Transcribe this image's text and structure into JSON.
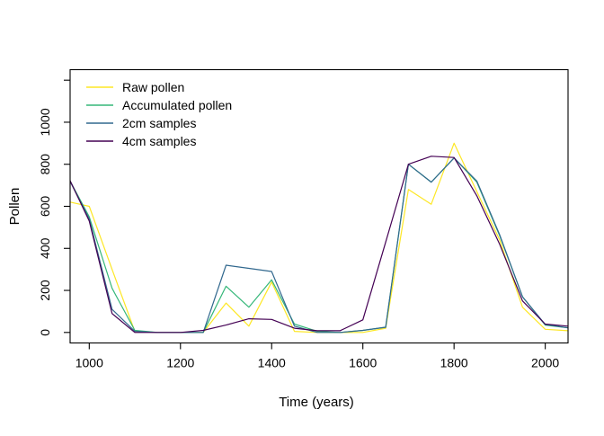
{
  "figure": {
    "background": "#ffffff",
    "axis_color": "#000000",
    "text_color": "#000000"
  },
  "chart_data": {
    "type": "line",
    "title": "",
    "xlabel": "Time (years)",
    "ylabel": "Pollen",
    "grid": false,
    "xlim": [
      958,
      2050
    ],
    "ylim": [
      -50,
      1250
    ],
    "x_ticks": [
      1000,
      1200,
      1400,
      1600,
      1800,
      2000
    ],
    "y_ticks": [
      0,
      200,
      400,
      600,
      800,
      1000,
      1200
    ],
    "y_tick_labels": [
      "0",
      "200",
      "400",
      "600",
      "800",
      "1000",
      ""
    ],
    "legend": {
      "position": "top-left-inside"
    },
    "x": [
      958,
      1000,
      1050,
      1100,
      1150,
      1200,
      1250,
      1300,
      1350,
      1400,
      1450,
      1500,
      1550,
      1600,
      1650,
      1700,
      1750,
      1800,
      1850,
      1900,
      1950,
      2000,
      2050
    ],
    "series": [
      {
        "name": "Raw pollen",
        "color": "#FDE725",
        "values": [
          620,
          600,
          300,
          5,
          0,
          0,
          0,
          140,
          30,
          240,
          5,
          0,
          0,
          0,
          20,
          680,
          610,
          900,
          670,
          440,
          120,
          15,
          8
        ]
      },
      {
        "name": "Accumulated pollen",
        "color": "#35B779",
        "values": [
          720,
          550,
          210,
          10,
          0,
          0,
          0,
          220,
          120,
          250,
          40,
          5,
          0,
          10,
          25,
          800,
          715,
          830,
          715,
          460,
          170,
          35,
          22
        ]
      },
      {
        "name": "2cm samples",
        "color": "#31688E",
        "values": [
          718,
          540,
          110,
          5,
          0,
          0,
          0,
          320,
          305,
          290,
          30,
          0,
          0,
          10,
          25,
          800,
          715,
          830,
          720,
          465,
          170,
          38,
          22
        ]
      },
      {
        "name": "4cm samples",
        "color": "#440154",
        "values": [
          722,
          530,
          90,
          0,
          0,
          0,
          10,
          35,
          65,
          62,
          20,
          8,
          8,
          60,
          430,
          800,
          838,
          832,
          650,
          420,
          150,
          40,
          30
        ]
      }
    ]
  }
}
